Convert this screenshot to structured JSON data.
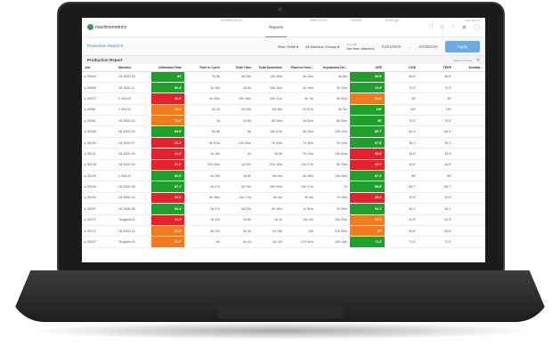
{
  "app": {
    "logo": "machinemetrics",
    "shop": "CNC Shop 2"
  },
  "nav": [
    {
      "label": "Dashboards"
    },
    {
      "label": "Reports",
      "active": true
    },
    {
      "label": "Machines"
    },
    {
      "label": "Health"
    },
    {
      "label": "Settings"
    }
  ],
  "header_icons": [
    "shuffle-icon",
    "globe-icon",
    "bell-icon",
    "lock-icon",
    "user-icon"
  ],
  "toolbar": {
    "report_select": "Production Report ▾",
    "filter_shifts": "Filter Shifts ▾",
    "machine_groups": "All Machine Groups ▾",
    "group_by_label": "Group By",
    "group_by": "Job  then  Machine",
    "start_date": "01/01/2020",
    "arrow": "→",
    "end_date": "01/30/2020",
    "apply": "Apply"
  },
  "table": {
    "title": "Production Report",
    "select_columns": "Select Columns",
    "columns": [
      "Job",
      "Machine",
      "Utilization Rate",
      "Time In Cycle",
      "Total Time",
      "Total Downtime",
      "Planned Dow...",
      "Unplanned Do...",
      "OEE",
      "OOE",
      "TEEP",
      "Availab..."
    ],
    "colors": {
      "green": "#1fa02a",
      "red": "#e8202c",
      "orange": "#f47a20"
    },
    "rows": [
      [
        "00043",
        "LB 3000-16",
        "84'",
        "green",
        "3d 5h",
        "3d 20h",
        "14h 39m",
        "4h 45m",
        "3h 8m",
        "68.6'",
        "green",
        "68.6'",
        "68.6'"
      ],
      [
        "00058",
        "LB 3000-11",
        "86.2'",
        "green",
        "2d 16h",
        "3d 5h",
        "10h 34m",
        "4h 44m",
        "5h 33m",
        "72.3'",
        "green",
        "72.3'",
        "72.3'"
      ],
      [
        "00072",
        "L 300-03",
        "48.6'",
        "red",
        "9h 39m",
        "19h 45m",
        "10h 21m",
        "3h 7m",
        "3h 50m",
        "54.3'",
        "orange",
        "49'",
        "49'"
      ],
      [
        "00081",
        "L 300-02",
        "73.4'",
        "orange",
        "2d 4h",
        "2d 23h",
        "19h 8m",
        "2h 57m",
        "6h 3m",
        "118'",
        "green",
        "116'",
        "116'"
      ],
      [
        "00091",
        "LB 3000-02",
        "75.6'",
        "orange",
        "1d",
        "1d 8h",
        "8h 39m",
        "2h 52m",
        "6h 50m",
        "80'",
        "green",
        "79.6'",
        "79.6'"
      ],
      [
        "00106",
        "LB 3000-03",
        "88.6'",
        "green",
        "5d 8h",
        "6d",
        "16h 57m",
        "4h 16m",
        "10h 41m",
        "85.7'",
        "green",
        "84.4'",
        "84.4'"
      ],
      [
        "00109",
        "LB 3000-07",
        "54.2'",
        "red",
        "8h 57m",
        "12h 50m",
        "7h 54m",
        "7h 49m",
        "2h 34m",
        "87.8'",
        "green",
        "38.1'",
        "38.1'"
      ],
      [
        "00121",
        "LB 3000-05",
        "44.2'",
        "red",
        "1d 18h",
        "4d",
        "2d 6h",
        "7h 12m",
        "13h 52m",
        "45.0'",
        "red",
        "44.5'",
        "44.5'"
      ],
      [
        "00128",
        "LB 3000-06",
        "51.6'",
        "red",
        "22h 40m",
        "1d 22h",
        "22h 16m",
        "12h 37m",
        "5h 33m",
        "46.7'",
        "red",
        "44.6'",
        "44.6'"
      ],
      [
        "00138",
        "L 300-02",
        "83.0'",
        "green",
        "2d 19h",
        "3d 8h",
        "14h 5m",
        "4h 46m",
        "10h 53m",
        "87.2'",
        "green",
        "89'",
        "89'"
      ],
      [
        "00145",
        "LB 3000-08",
        "87.1'",
        "green",
        "4d 17h",
        "5d 10h",
        "18h 50m",
        "14h 17m",
        "7h",
        "88.8'",
        "green",
        "84.7'",
        "84.7'"
      ],
      [
        "00150",
        "LB 3000-03",
        "39.2'",
        "red",
        "5h 36m",
        "14h 17m",
        "8h 4m",
        "3h 9m",
        "7h 46m",
        "38.2'",
        "red",
        "32.8'",
        "32.8'"
      ],
      [
        "00167",
        "LB 3000-06",
        "84.4'",
        "green",
        "3d 17h",
        "3d 22h",
        "5h 15m",
        "1h 52m",
        "2h 59m",
        "94.1'",
        "green",
        "94.1'",
        "94.1'"
      ],
      [
        "00170",
        "Tsugami-01",
        "62.8'",
        "red",
        "1d 11h",
        "2d 8h",
        "1d 1h",
        "14h 2m",
        "10h 29m",
        "55.4'",
        "orange",
        "51.5'",
        "51.5'"
      ],
      [
        "00172",
        "LB 3000-14",
        "67.3'",
        "orange",
        "3d 12h",
        "5d 5h",
        "1d 18h",
        "14h",
        "21h 50m",
        "67'",
        "orange",
        "64.8'",
        "64.8'"
      ],
      [
        "00207",
        "Tsugami-03",
        "61.7'",
        "orange",
        "1w",
        "1w 2d",
        "1d 14h",
        "17h 52m",
        "15h 18m",
        "71.3'",
        "green",
        "71.2'",
        "71.2'"
      ]
    ]
  }
}
